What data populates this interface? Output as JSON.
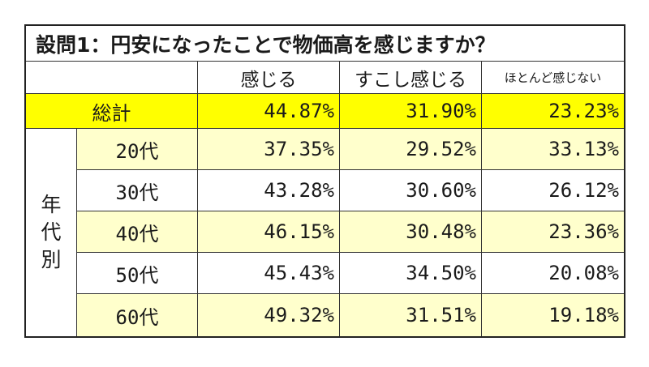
{
  "title": "設問1：円安になったことで物価高を感じますか？",
  "columns": [
    "感じる",
    "すこし感じる",
    "ほとんど感じない"
  ],
  "total": {
    "label": "総計",
    "values": [
      "44.87%",
      "31.90%",
      "23.23%"
    ]
  },
  "group_label": [
    "年",
    "代",
    "別"
  ],
  "rows": [
    {
      "label": "20代",
      "values": [
        "37.35%",
        "29.52%",
        "33.13%"
      ]
    },
    {
      "label": "30代",
      "values": [
        "43.28%",
        "30.60%",
        "26.12%"
      ]
    },
    {
      "label": "40代",
      "values": [
        "46.15%",
        "30.48%",
        "23.36%"
      ]
    },
    {
      "label": "50代",
      "values": [
        "45.43%",
        "34.50%",
        "20.08%"
      ]
    },
    {
      "label": "60代",
      "values": [
        "49.32%",
        "31.51%",
        "19.18%"
      ]
    }
  ],
  "colors": {
    "total_row": "#ffff00",
    "alt_row": "#ffffcc",
    "border": "#222222"
  }
}
